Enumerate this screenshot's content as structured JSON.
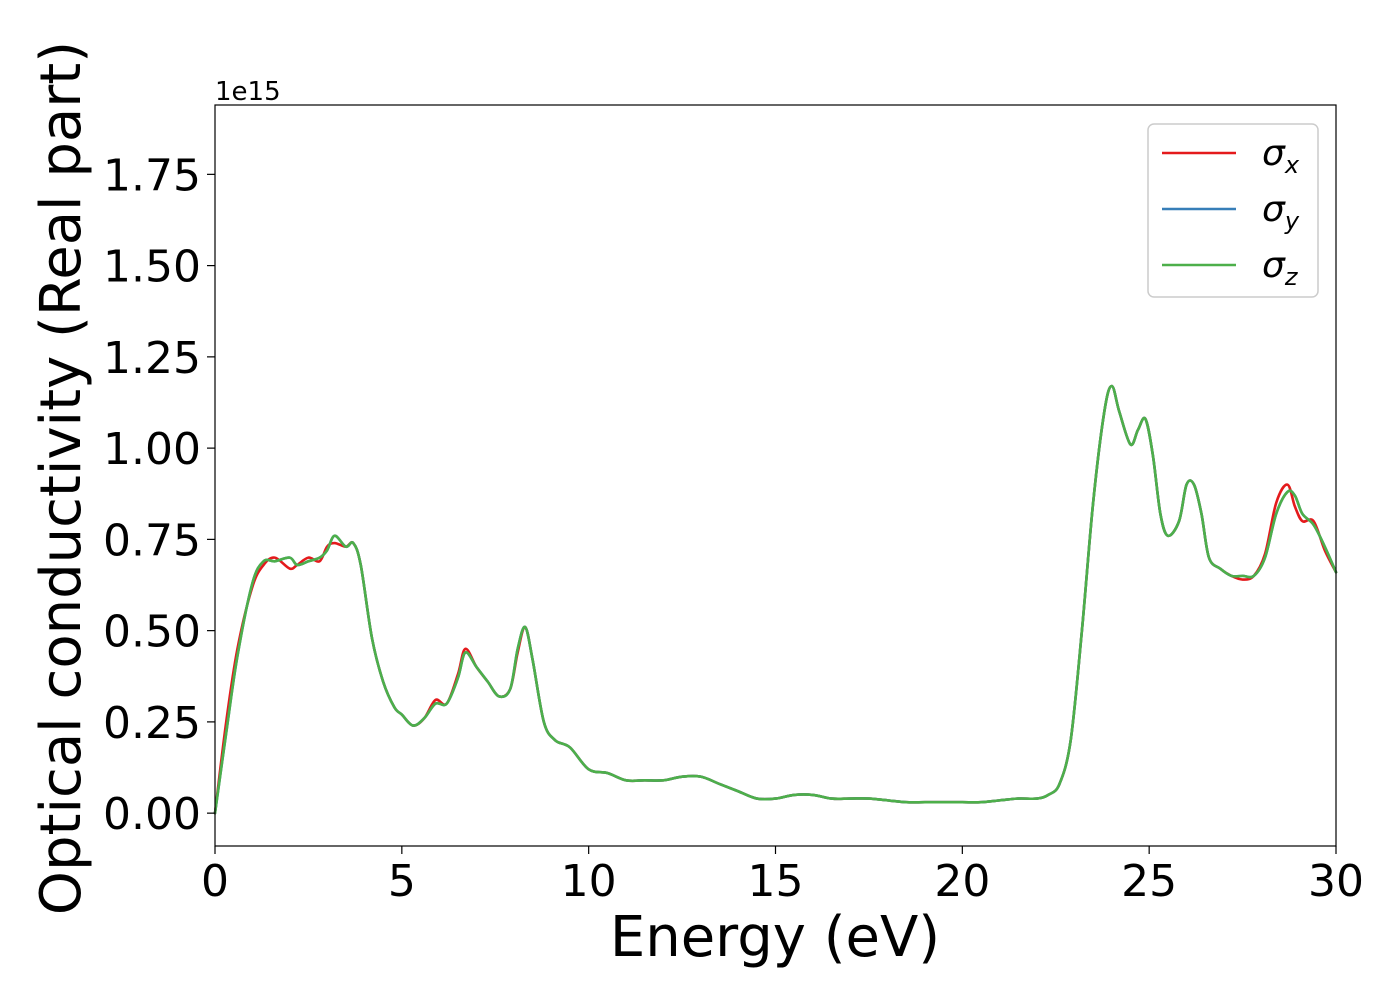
{
  "chart_data": {
    "type": "line",
    "xlabel": "Energy (eV)",
    "ylabel": "Optical conductivity (Real part)",
    "offset_text": "1e15",
    "xlim": [
      0,
      30
    ],
    "ylim": [
      -0.09,
      1.94
    ],
    "x_ticks": [
      0,
      5,
      10,
      15,
      20,
      25,
      30
    ],
    "x_tick_labels": [
      "0",
      "5",
      "10",
      "15",
      "20",
      "25",
      "30"
    ],
    "y_ticks": [
      0.0,
      0.25,
      0.5,
      0.75,
      1.0,
      1.25,
      1.5,
      1.75
    ],
    "y_tick_labels": [
      "0.00",
      "0.25",
      "0.50",
      "0.75",
      "1.00",
      "1.25",
      "1.50",
      "1.75"
    ],
    "grid": false,
    "legend": "upper-right",
    "x": [
      0,
      0.3,
      0.6,
      1.0,
      1.3,
      1.6,
      2.0,
      2.2,
      2.5,
      2.8,
      3.0,
      3.2,
      3.5,
      3.7,
      3.9,
      4.2,
      4.5,
      4.8,
      5.0,
      5.3,
      5.6,
      5.9,
      6.2,
      6.5,
      6.7,
      7.0,
      7.3,
      7.6,
      7.9,
      8.1,
      8.3,
      8.5,
      8.8,
      9.1,
      9.5,
      10.0,
      10.5,
      11.0,
      11.5,
      12.0,
      12.5,
      13.0,
      13.5,
      14.0,
      14.5,
      15.0,
      15.5,
      16.0,
      16.5,
      17.0,
      17.5,
      18.0,
      18.5,
      19.0,
      19.5,
      20.0,
      20.5,
      21.0,
      21.5,
      22.0,
      22.3,
      22.6,
      22.9,
      23.2,
      23.5,
      23.8,
      24.0,
      24.2,
      24.5,
      24.7,
      24.9,
      25.1,
      25.3,
      25.5,
      25.8,
      26.0,
      26.2,
      26.4,
      26.6,
      26.9,
      27.2,
      27.5,
      27.8,
      28.1,
      28.4,
      28.7,
      28.9,
      29.1,
      29.4,
      29.7,
      30.0
    ],
    "series": [
      {
        "name": "σx",
        "color": "#e41a1c",
        "values": [
          0.0,
          0.25,
          0.45,
          0.62,
          0.68,
          0.7,
          0.67,
          0.68,
          0.7,
          0.69,
          0.73,
          0.74,
          0.73,
          0.74,
          0.68,
          0.48,
          0.36,
          0.29,
          0.27,
          0.24,
          0.26,
          0.31,
          0.3,
          0.38,
          0.45,
          0.4,
          0.36,
          0.32,
          0.34,
          0.44,
          0.51,
          0.42,
          0.25,
          0.2,
          0.18,
          0.12,
          0.11,
          0.09,
          0.09,
          0.09,
          0.1,
          0.1,
          0.08,
          0.06,
          0.04,
          0.04,
          0.05,
          0.05,
          0.04,
          0.04,
          0.04,
          0.035,
          0.03,
          0.03,
          0.03,
          0.03,
          0.03,
          0.035,
          0.04,
          0.04,
          0.05,
          0.08,
          0.2,
          0.5,
          0.85,
          1.1,
          1.17,
          1.1,
          1.01,
          1.05,
          1.08,
          0.98,
          0.82,
          0.76,
          0.8,
          0.9,
          0.9,
          0.82,
          0.7,
          0.67,
          0.65,
          0.64,
          0.65,
          0.71,
          0.85,
          0.9,
          0.84,
          0.8,
          0.8,
          0.72,
          0.66
        ]
      },
      {
        "name": "σy",
        "color": "#377eb8",
        "values": [
          0.0,
          0.22,
          0.43,
          0.63,
          0.69,
          0.69,
          0.7,
          0.68,
          0.69,
          0.7,
          0.72,
          0.76,
          0.73,
          0.74,
          0.68,
          0.48,
          0.36,
          0.29,
          0.27,
          0.24,
          0.26,
          0.3,
          0.3,
          0.37,
          0.44,
          0.4,
          0.36,
          0.32,
          0.34,
          0.45,
          0.51,
          0.42,
          0.25,
          0.2,
          0.18,
          0.12,
          0.11,
          0.09,
          0.09,
          0.09,
          0.1,
          0.1,
          0.08,
          0.06,
          0.04,
          0.04,
          0.05,
          0.05,
          0.04,
          0.04,
          0.04,
          0.035,
          0.03,
          0.03,
          0.03,
          0.03,
          0.03,
          0.035,
          0.04,
          0.04,
          0.05,
          0.08,
          0.2,
          0.5,
          0.85,
          1.1,
          1.17,
          1.1,
          1.01,
          1.05,
          1.08,
          0.98,
          0.82,
          0.76,
          0.8,
          0.9,
          0.9,
          0.82,
          0.7,
          0.67,
          0.65,
          0.65,
          0.65,
          0.7,
          0.82,
          0.88,
          0.87,
          0.82,
          0.79,
          0.73,
          0.66
        ]
      },
      {
        "name": "σz",
        "color": "#4daf4a",
        "values": [
          0.0,
          0.22,
          0.43,
          0.63,
          0.69,
          0.69,
          0.7,
          0.68,
          0.69,
          0.7,
          0.72,
          0.76,
          0.73,
          0.74,
          0.68,
          0.48,
          0.36,
          0.29,
          0.27,
          0.24,
          0.26,
          0.3,
          0.3,
          0.37,
          0.44,
          0.4,
          0.36,
          0.32,
          0.34,
          0.45,
          0.51,
          0.42,
          0.25,
          0.2,
          0.18,
          0.12,
          0.11,
          0.09,
          0.09,
          0.09,
          0.1,
          0.1,
          0.08,
          0.06,
          0.04,
          0.04,
          0.05,
          0.05,
          0.04,
          0.04,
          0.04,
          0.035,
          0.03,
          0.03,
          0.03,
          0.03,
          0.03,
          0.035,
          0.04,
          0.04,
          0.05,
          0.08,
          0.2,
          0.5,
          0.85,
          1.1,
          1.17,
          1.1,
          1.01,
          1.05,
          1.08,
          0.98,
          0.82,
          0.76,
          0.8,
          0.9,
          0.9,
          0.82,
          0.7,
          0.67,
          0.65,
          0.65,
          0.65,
          0.7,
          0.82,
          0.88,
          0.87,
          0.82,
          0.79,
          0.73,
          0.66
        ]
      }
    ],
    "legend_entries": [
      {
        "symbol": "σ",
        "subscript": "x"
      },
      {
        "symbol": "σ",
        "subscript": "y"
      },
      {
        "symbol": "σ",
        "subscript": "z"
      }
    ]
  }
}
